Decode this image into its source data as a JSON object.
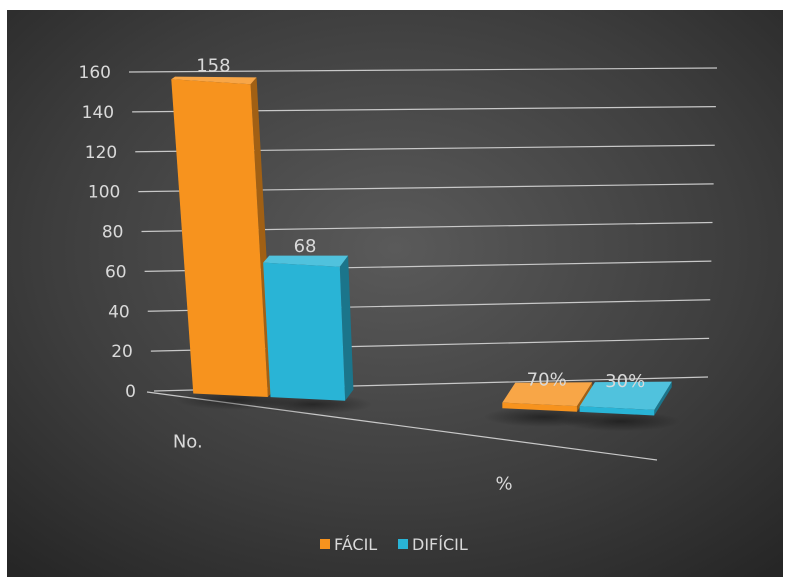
{
  "chart_data": {
    "type": "bar",
    "categories": [
      "No.",
      "%"
    ],
    "series": [
      {
        "name": "FÁCIL",
        "values": [
          158,
          0.7
        ],
        "labels": [
          "158",
          "70%"
        ],
        "color": "#F7931E"
      },
      {
        "name": "DIFÍCIL",
        "values": [
          68,
          0.3
        ],
        "labels": [
          "68",
          "30%"
        ],
        "color": "#29B4D6"
      }
    ],
    "title": "",
    "xlabel": "",
    "ylabel": "",
    "ylim": [
      0,
      160
    ],
    "yticks": [
      "0",
      "20",
      "40",
      "60",
      "80",
      "100",
      "120",
      "140",
      "160"
    ],
    "grid": true,
    "legend": "bottom",
    "view": "3d-perspective",
    "background": "#3a3a3a"
  }
}
